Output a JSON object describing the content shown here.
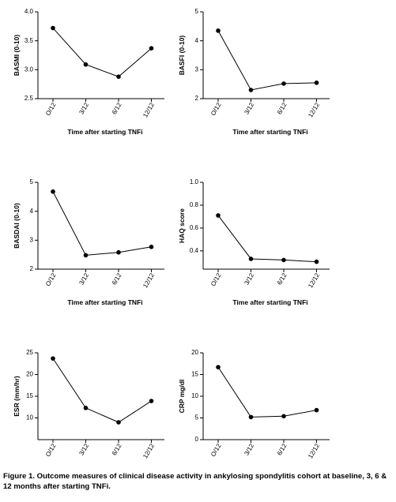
{
  "chart_data": [
    {
      "type": "line",
      "ylabel": "BASMI (0-10)",
      "xlabel": "Time after starting TNFi",
      "categories": [
        "O/12",
        "3/12",
        "6/12",
        "12/12"
      ],
      "values": [
        3.72,
        3.09,
        2.88,
        3.37
      ],
      "color": "#000000",
      "ylim": [
        2.5,
        4
      ],
      "yticks": [
        2.5,
        {
          "value": 3,
          "label": "3.0"
        },
        3.5,
        {
          "value": 4,
          "label": "4.0"
        }
      ]
    },
    {
      "type": "line",
      "ylabel": "BASFI (0-10)",
      "xlabel": "Time after starting TNFi",
      "categories": [
        "O/12",
        "3/12",
        "6/12",
        "12/12"
      ],
      "values": [
        4.35,
        2.3,
        2.52,
        2.55
      ],
      "color": "#000000",
      "ylim": [
        2,
        5
      ],
      "yticks": [
        2,
        3,
        4,
        5
      ]
    },
    {
      "type": "line",
      "ylabel": "BASDAI (0-10)",
      "xlabel": "Time after starting TNFi",
      "categories": [
        "O/12",
        "3/12",
        "6/12",
        "12/12"
      ],
      "values": [
        4.68,
        2.48,
        2.58,
        2.77
      ],
      "color": "#000000",
      "ylim": [
        2,
        5
      ],
      "yticks": [
        2,
        3,
        4,
        5
      ]
    },
    {
      "type": "line",
      "ylabel": "HAQ score",
      "xlabel": "Time after starting TNFi",
      "categories": [
        "O/12",
        "3/12",
        "6/12",
        "12/12"
      ],
      "values": [
        0.71,
        0.33,
        0.32,
        0.305
      ],
      "color": "#000000",
      "ylim": [
        0.24,
        1
      ],
      "yticks": [
        0.4,
        0.6,
        0.8,
        {
          "value": 1,
          "label": "1.0"
        }
      ]
    },
    {
      "type": "line",
      "ylabel": "ESR (mm/hr)",
      "xlabel": "Time after starting TNFi",
      "categories": [
        "O/12",
        "3/12",
        "6/12",
        "12/12"
      ],
      "values": [
        23.7,
        12.3,
        9.0,
        13.9
      ],
      "color": "#000000",
      "ylim": [
        5,
        25
      ],
      "yticks": [
        10,
        15,
        20,
        25
      ]
    },
    {
      "type": "line",
      "ylabel": "CRP mg/dl",
      "xlabel": "Time after starting TNFi",
      "categories": [
        "O/12",
        "3/12",
        "6/12",
        "12/12"
      ],
      "values": [
        16.7,
        5.2,
        5.4,
        6.8
      ],
      "color": "#000000",
      "ylim": [
        0,
        20
      ],
      "yticks": [
        0,
        5,
        10,
        15,
        20
      ]
    }
  ],
  "caption": "Figure 1. Outcome measures of clinical disease activity in ankylosing spondylitis cohort at baseline, 3, 6 & 12 months after starting TNFi."
}
